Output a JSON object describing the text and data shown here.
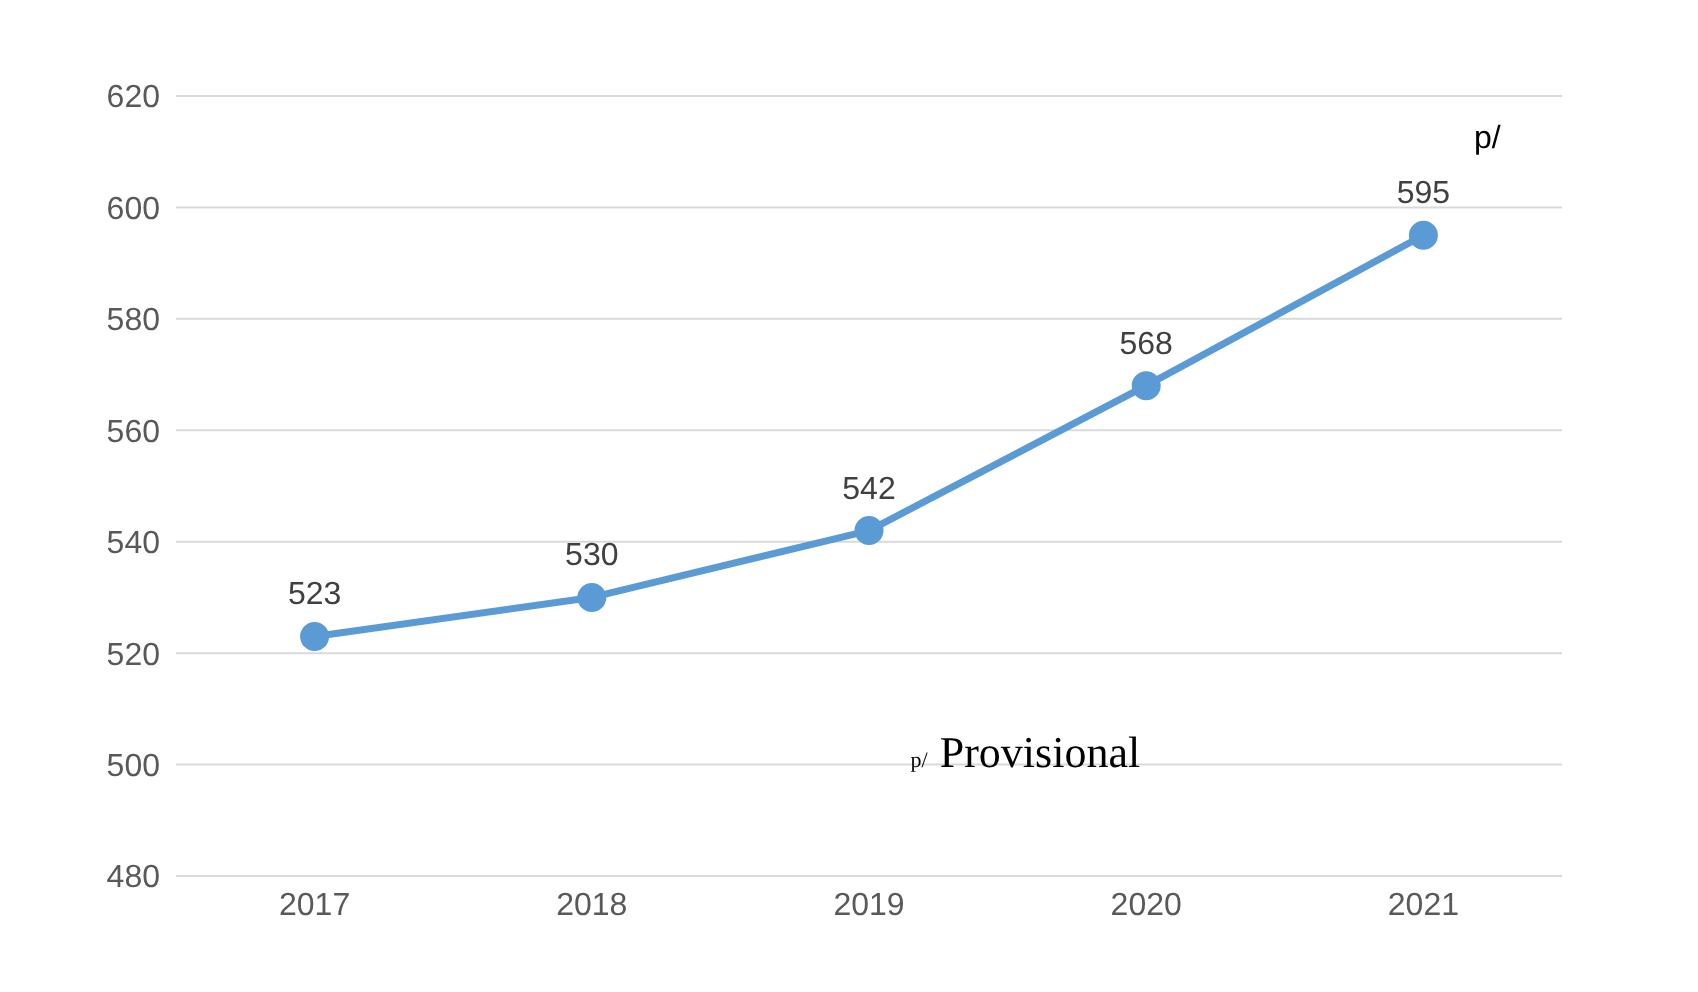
{
  "chart_data": {
    "type": "line",
    "categories": [
      "2017",
      "2018",
      "2019",
      "2020",
      "2021"
    ],
    "series": [
      {
        "color": "#5b9bd5",
        "values": [
          523,
          530,
          542,
          568,
          595
        ]
      }
    ],
    "ylim": [
      480,
      620
    ],
    "yticks": [
      480,
      500,
      520,
      540,
      560,
      580,
      600,
      620
    ],
    "grid": "y",
    "marker": "circle",
    "line_style": "solid",
    "data_labels": true,
    "legend": false,
    "annotations": [
      "p/",
      "p/ Provisional"
    ]
  }
}
